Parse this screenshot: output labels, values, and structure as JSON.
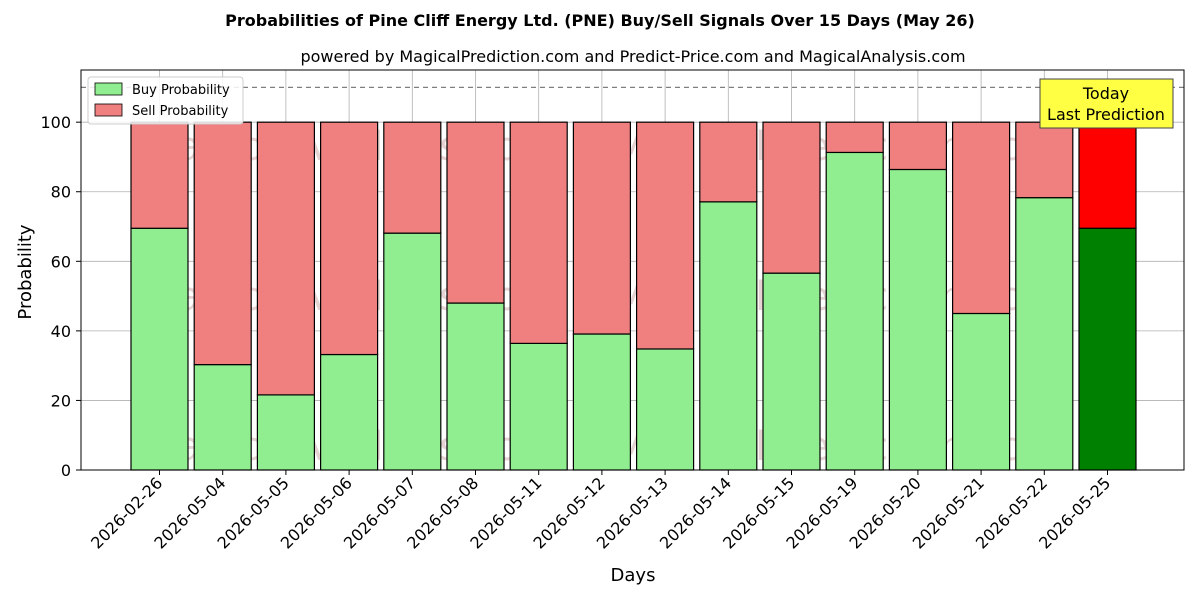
{
  "chart_data": {
    "type": "bar",
    "stacked": true,
    "title": "Probabilities of Pine Cliff Energy Ltd. (PNE) Buy/Sell Signals Over 15 Days (May 26)",
    "subtitle": "powered by MagicalPrediction.com and Predict-Price.com and MagicalAnalysis.com",
    "xlabel": "Days",
    "ylabel": "Probability",
    "ylim": [
      0,
      115
    ],
    "yticks": [
      0,
      20,
      40,
      60,
      80,
      100
    ],
    "grid": true,
    "legend_position": "top-left",
    "reference_line": 110,
    "categories": [
      "2026-02-26",
      "2026-05-04",
      "2026-05-05",
      "2026-05-06",
      "2026-05-07",
      "2026-05-08",
      "2026-05-11",
      "2026-05-12",
      "2026-05-13",
      "2026-05-14",
      "2026-05-15",
      "2026-05-19",
      "2026-05-20",
      "2026-05-21",
      "2026-05-22",
      "2026-05-25"
    ],
    "series": [
      {
        "name": "Buy Probability",
        "color": "#90ee90",
        "highlight_color": "#008000",
        "values": [
          69.5,
          30.3,
          21.6,
          33.2,
          68.1,
          48.0,
          36.4,
          39.1,
          34.8,
          77.1,
          56.6,
          91.3,
          86.4,
          45.0,
          78.3,
          69.5
        ]
      },
      {
        "name": "Sell Probability",
        "color": "#f08080",
        "highlight_color": "#ff0000",
        "values": [
          30.5,
          69.7,
          78.4,
          66.8,
          31.9,
          52.0,
          63.6,
          60.9,
          65.2,
          22.9,
          43.4,
          8.7,
          13.6,
          55.0,
          21.7,
          30.5
        ]
      }
    ],
    "annotation": {
      "line1": "Today",
      "line2": "Last Prediction",
      "color": "#ffff44"
    },
    "watermarks": [
      "MagicalAnalysis.com",
      "MagicalPrediction.com"
    ]
  }
}
